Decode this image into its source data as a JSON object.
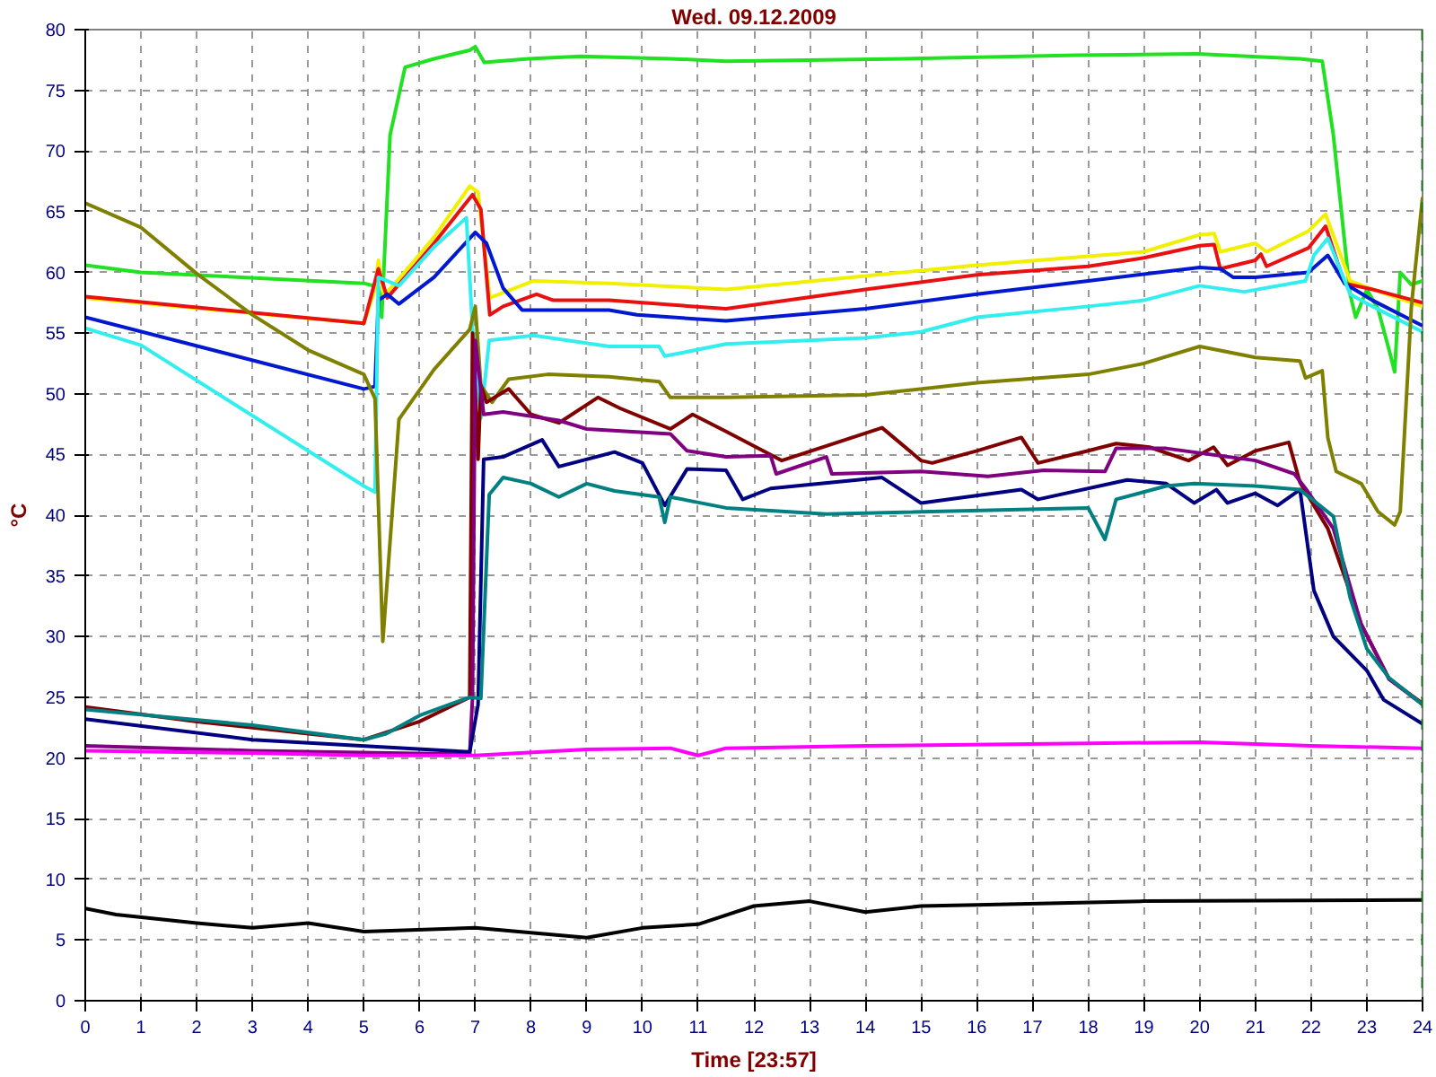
{
  "chart_data": {
    "type": "line",
    "title": "Wed. 09.12.2009",
    "xlabel": "Time [23:57]",
    "ylabel": "°C",
    "xlim": [
      0,
      24
    ],
    "ylim": [
      0,
      80
    ],
    "xticks": [
      0,
      1,
      2,
      3,
      4,
      5,
      6,
      7,
      8,
      9,
      10,
      11,
      12,
      13,
      14,
      15,
      16,
      17,
      18,
      19,
      20,
      21,
      22,
      23,
      24
    ],
    "yticks": [
      0,
      5,
      10,
      15,
      20,
      25,
      30,
      35,
      40,
      45,
      50,
      55,
      60,
      65,
      70,
      75,
      80
    ],
    "grid": true,
    "marker": "none",
    "line_style": "solid",
    "ref_lines": [
      {
        "axis": "x",
        "value": 24,
        "color": "#008000",
        "line_style": "dashed"
      }
    ],
    "series": [
      {
        "color": "#22e022",
        "x": [
          0,
          1,
          5,
          5.26,
          5.32,
          5.47,
          5.74,
          6.26,
          6.9,
          7.0,
          7.16,
          7.95,
          8.9,
          10.5,
          11.5,
          14.7,
          17.8,
          19.95,
          21.8,
          22.2,
          22.4,
          22.7,
          22.8,
          23,
          23.2,
          23.4,
          23.5,
          23.6,
          23.8,
          24
        ],
        "values": [
          60.6,
          60,
          59.1,
          58.8,
          56.3,
          71.3,
          76.9,
          77.6,
          78.3,
          78.6,
          77.3,
          77.6,
          77.8,
          77.6,
          77.4,
          77.6,
          77.9,
          78,
          77.6,
          77.4,
          71.3,
          58.2,
          56.3,
          58.6,
          57,
          53.6,
          51.8,
          60,
          59,
          59.3
        ]
      },
      {
        "color": "#f0f000",
        "x": [
          0,
          5.0,
          5.2,
          5.26,
          5.36,
          5.58,
          6.26,
          6.9,
          7.05,
          7.26,
          8.05,
          9.4,
          11.5,
          16,
          19,
          20,
          20.26,
          20.37,
          21,
          21.2,
          21.95,
          22.26,
          22.7,
          23.1,
          24
        ],
        "values": [
          57.9,
          55.8,
          58.6,
          61,
          58.1,
          59.2,
          62.9,
          67.1,
          66.6,
          57.9,
          59.3,
          59.1,
          58.6,
          60.6,
          61.7,
          63.1,
          63.2,
          61.7,
          62.4,
          61.7,
          63.4,
          64.8,
          59.3,
          58.6,
          57.2
        ]
      },
      {
        "color": "#e81010",
        "x": [
          0,
          5.0,
          5.26,
          5.42,
          5.74,
          6.26,
          6.95,
          7.1,
          7.26,
          7.5,
          8.1,
          8.4,
          9.4,
          11.5,
          14,
          16,
          18,
          19,
          20,
          20.26,
          20.37,
          21,
          21.1,
          21.2,
          21.95,
          22.26,
          22.6,
          23.1,
          24
        ],
        "values": [
          58,
          55.8,
          60.3,
          57.9,
          59.6,
          62.4,
          66.4,
          65.2,
          56.5,
          57.2,
          58.2,
          57.7,
          57.7,
          57,
          58.6,
          59.8,
          60.5,
          61.2,
          62.2,
          62.3,
          60.3,
          61,
          61.5,
          60.5,
          62,
          63.8,
          59.1,
          58.6,
          57.5
        ]
      },
      {
        "color": "#0018d0",
        "x": [
          0,
          5.0,
          5.2,
          5.26,
          5.42,
          5.63,
          6.26,
          7.0,
          7.2,
          7.5,
          7.84,
          9.4,
          9.9,
          11.5,
          14,
          16,
          18,
          20,
          20.37,
          20.6,
          21,
          21.95,
          22.3,
          22.6,
          23.1,
          24
        ],
        "values": [
          56.3,
          50.4,
          50.6,
          57.7,
          58.2,
          57.4,
          59.6,
          63.3,
          62.4,
          58.7,
          56.9,
          56.9,
          56.5,
          56,
          57,
          58.2,
          59.3,
          60.4,
          60.3,
          59.6,
          59.6,
          60,
          61.4,
          59.1,
          57.7,
          55.6
        ]
      },
      {
        "color": "#33eeee",
        "x": [
          0,
          1,
          5.0,
          5.2,
          5.26,
          5.63,
          6.26,
          6.84,
          6.95,
          7.1,
          7.25,
          8.05,
          9.4,
          10.3,
          10.4,
          11.5,
          14,
          15,
          16,
          18,
          19,
          20,
          20.8,
          21.9,
          22.05,
          22.3,
          22.7,
          23.1,
          24
        ],
        "values": [
          55.4,
          54,
          42.4,
          41.9,
          59.6,
          58.9,
          62.1,
          64.5,
          55.4,
          48,
          54.4,
          54.8,
          53.9,
          53.9,
          53.1,
          54.1,
          54.6,
          55.1,
          56.3,
          57.2,
          57.7,
          58.9,
          58.4,
          59.3,
          61.4,
          62.8,
          58.2,
          57.2,
          55.1
        ]
      },
      {
        "color": "#808000",
        "x": [
          0,
          1,
          2,
          3,
          4,
          5.0,
          5.2,
          5.34,
          5.63,
          6.26,
          6.9,
          7.0,
          7.1,
          7.3,
          7.6,
          8.3,
          9.4,
          10.3,
          10.5,
          11.5,
          14,
          16,
          18,
          19,
          20,
          21,
          21.8,
          21.9,
          22.2,
          22.3,
          22.45,
          22.9,
          23.2,
          23.5,
          23.6,
          23.8,
          24
        ],
        "values": [
          65.7,
          63.7,
          59.9,
          56.5,
          53.6,
          51.6,
          49.6,
          29.6,
          47.9,
          52,
          55.3,
          57.2,
          50.7,
          49.3,
          51.2,
          51.6,
          51.4,
          51,
          49.7,
          49.7,
          49.9,
          50.9,
          51.6,
          52.5,
          53.9,
          53,
          52.7,
          51.3,
          51.9,
          46.4,
          43.6,
          42.6,
          40.3,
          39.2,
          40.3,
          57.2,
          66.2
        ]
      },
      {
        "color": "#800000",
        "x": [
          0,
          2,
          5,
          6,
          6.9,
          6.95,
          7.0,
          7.05,
          7.1,
          7.2,
          7.6,
          8.0,
          8.5,
          9.2,
          9.6,
          10.5,
          10.9,
          11.5,
          12.5,
          14.3,
          15,
          15.2,
          16,
          16.8,
          17.1,
          18,
          18.5,
          19.1,
          19.8,
          20.25,
          20.5,
          21,
          21.6,
          21.8,
          22.3,
          22.9,
          23.4,
          24
        ],
        "values": [
          24.2,
          23,
          21.5,
          23,
          25,
          55,
          50.2,
          44.6,
          50.7,
          49.3,
          50.4,
          48.3,
          47.6,
          49.7,
          48.8,
          47.1,
          48.3,
          46.9,
          44.5,
          47.2,
          44.5,
          44.3,
          45.3,
          46.4,
          44.3,
          45.3,
          45.9,
          45.6,
          44.5,
          45.6,
          44.1,
          45.3,
          46,
          42.7,
          38.9,
          31,
          26.5,
          24.5
        ]
      },
      {
        "color": "#800080",
        "x": [
          0,
          3,
          6.9,
          6.95,
          7.0,
          7.15,
          7.5,
          8.5,
          9.0,
          10.5,
          10.8,
          11.5,
          12.3,
          12.4,
          13.3,
          13.4,
          15,
          16.2,
          17.2,
          18.3,
          18.5,
          19.4,
          21,
          21.7,
          21.9,
          22.4,
          22.9,
          23.4,
          24
        ],
        "values": [
          21,
          20.6,
          20.3,
          25,
          54.4,
          48.3,
          48.5,
          47.8,
          47.1,
          46.7,
          45.3,
          44.8,
          44.9,
          43.4,
          44.8,
          43.4,
          43.6,
          43.2,
          43.7,
          43.6,
          45.5,
          45.5,
          44.5,
          43.4,
          42.2,
          38.9,
          31,
          26.5,
          24.4
        ]
      },
      {
        "color": "#000080",
        "x": [
          0,
          3,
          6.9,
          7.05,
          7.15,
          7.5,
          8.2,
          8.5,
          9.5,
          10.0,
          10.4,
          10.8,
          11.5,
          11.8,
          12.3,
          14.3,
          15,
          16.8,
          17.1,
          18.7,
          19.4,
          19.9,
          20.3,
          20.5,
          21,
          21.4,
          21.8,
          22.05,
          22.4,
          23,
          23.3,
          24
        ],
        "values": [
          23.2,
          21.5,
          20.5,
          24.4,
          44.6,
          44.8,
          46.2,
          44,
          45.2,
          44.3,
          40.8,
          43.8,
          43.7,
          41.3,
          42.2,
          43.1,
          41,
          42.1,
          41.3,
          42.9,
          42.6,
          41,
          42.1,
          41,
          41.8,
          40.8,
          42.1,
          33.8,
          30,
          27.2,
          24.8,
          22.8
        ]
      },
      {
        "color": "#008080",
        "x": [
          0,
          3,
          5,
          5.4,
          6,
          6.9,
          7.1,
          7.25,
          7.5,
          8.0,
          8.5,
          9.0,
          9.5,
          10.3,
          10.4,
          10.5,
          11.5,
          13.3,
          18,
          18.3,
          18.5,
          19.4,
          19.9,
          21,
          21.8,
          22.4,
          22.7,
          23,
          23.4,
          24
        ],
        "values": [
          24,
          22.7,
          21.5,
          22,
          23.5,
          25,
          24.9,
          41.7,
          43.1,
          42.6,
          41.5,
          42.6,
          42,
          41.5,
          39.4,
          41.5,
          40.6,
          40.1,
          40.6,
          38,
          41.3,
          42.4,
          42.6,
          42.4,
          42.1,
          39.9,
          33.2,
          29,
          26.6,
          24.4
        ]
      },
      {
        "color": "#ff00ff",
        "x": [
          0,
          3,
          5,
          7,
          9,
          10.5,
          11,
          11.5,
          14,
          18,
          20,
          22,
          24
        ],
        "values": [
          20.6,
          20.4,
          20.2,
          20.2,
          20.7,
          20.8,
          20.2,
          20.8,
          21,
          21.2,
          21.3,
          21,
          20.8
        ]
      },
      {
        "color": "#000000",
        "x": [
          0,
          0.55,
          2,
          3,
          4,
          5,
          7,
          9,
          10,
          11,
          12,
          13,
          14,
          15,
          16,
          19,
          24
        ],
        "values": [
          7.6,
          7.1,
          6.4,
          6,
          6.4,
          5.7,
          6,
          5.2,
          6,
          6.3,
          7.8,
          8.2,
          7.3,
          7.8,
          7.9,
          8.2,
          8.3
        ]
      }
    ]
  }
}
